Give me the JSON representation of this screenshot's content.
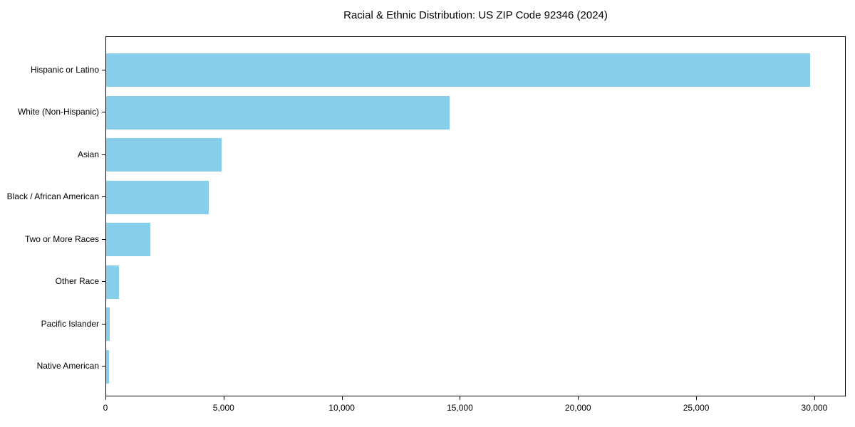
{
  "chart_data": {
    "type": "bar",
    "orientation": "horizontal",
    "title": "Racial & Ethnic Distribution: US ZIP Code 92346 (2024)",
    "categories": [
      "Hispanic or Latino",
      "White (Non-Hispanic)",
      "Asian",
      "Black / African American",
      "Two or More Races",
      "Other Race",
      "Pacific Islander",
      "Native American"
    ],
    "values": [
      29800,
      14530,
      4880,
      4330,
      1870,
      530,
      150,
      110
    ],
    "xlabel": "",
    "ylabel": "",
    "xlim": [
      0,
      31330
    ],
    "xticks": [
      0,
      5000,
      10000,
      15000,
      20000,
      25000,
      30000
    ],
    "xtick_labels": [
      "0",
      "5,000",
      "10,000",
      "15,000",
      "20,000",
      "25,000",
      "30,000"
    ],
    "bar_color": "#87CEEB",
    "background_color": "#ffffff",
    "text_color": "#000000",
    "grid": false,
    "legend": null
  }
}
